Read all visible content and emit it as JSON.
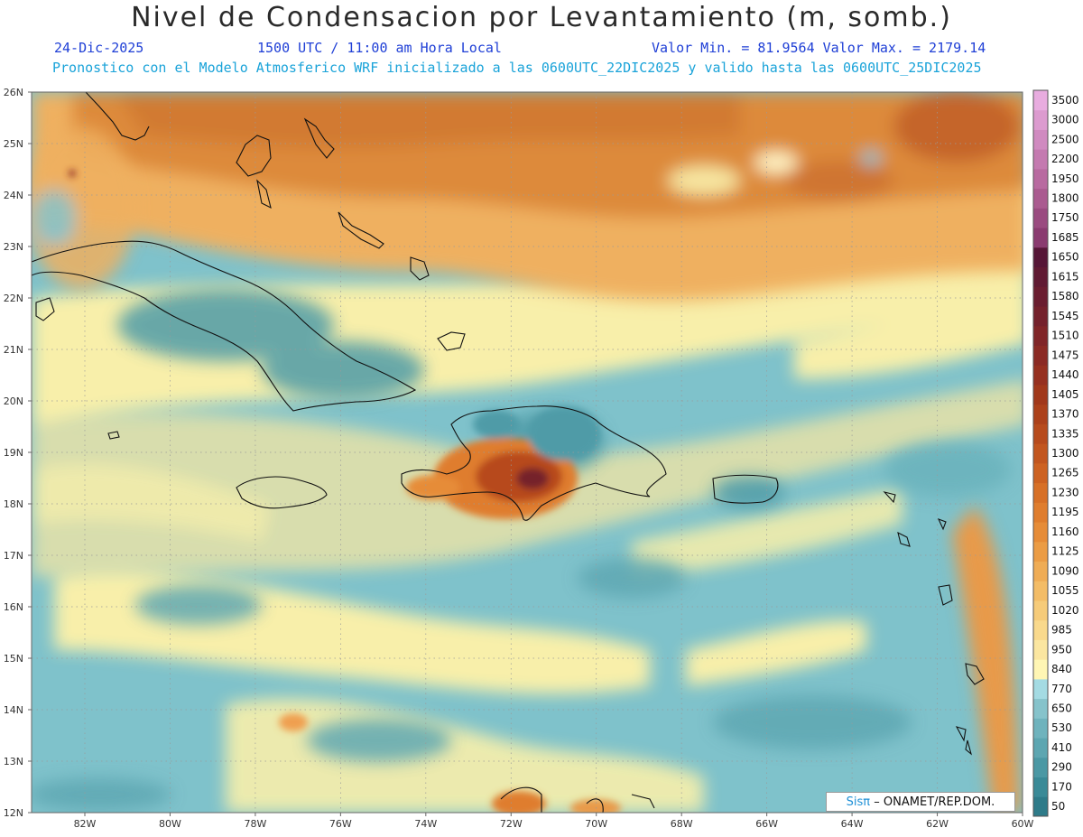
{
  "header": {
    "title": "Nivel de Condensacion por Levantamiento (m, somb.)",
    "date": "24-Dic-2025",
    "time": "1500 UTC / 11:00 am Hora Local",
    "minmax": "Valor Min. = 81.9564  Valor Max. = 2179.14",
    "forecast": "Pronostico con el Modelo Atmosferico WRF inicializado a las 0600UTC_22DIC2025 y valido hasta las  0600UTC_25DIC2025"
  },
  "axes": {
    "lat_labels": [
      "26N",
      "25N",
      "24N",
      "23N",
      "22N",
      "21N",
      "20N",
      "19N",
      "18N",
      "17N",
      "16N",
      "15N",
      "14N",
      "13N",
      "12N"
    ],
    "lon_labels": [
      "82W",
      "80W",
      "78W",
      "76W",
      "74W",
      "72W",
      "70W",
      "68W",
      "66W",
      "64W",
      "62W",
      "60W"
    ]
  },
  "colorbar": {
    "levels": [
      "50",
      "170",
      "290",
      "410",
      "530",
      "650",
      "770",
      "840",
      "950",
      "985",
      "1020",
      "1055",
      "1090",
      "1125",
      "1160",
      "1195",
      "1230",
      "1265",
      "1300",
      "1335",
      "1370",
      "1405",
      "1440",
      "1475",
      "1510",
      "1545",
      "1580",
      "1615",
      "1650",
      "1685",
      "1750",
      "1800",
      "1950",
      "2200",
      "2500",
      "3000",
      "3500"
    ],
    "colors": [
      "#2e7b89",
      "#3a8a97",
      "#4b98a4",
      "#5da6b1",
      "#6fb3bd",
      "#86c3cb",
      "#a4dbe3",
      "#fff6b4",
      "#fbe6a0",
      "#f9d98c",
      "#f6cb79",
      "#f3bc66",
      "#efac55",
      "#eb9c45",
      "#e68c38",
      "#df7d2e",
      "#d77027",
      "#cd6222",
      "#c2561f",
      "#b74b1d",
      "#ac411b",
      "#a1381b",
      "#963020",
      "#8b2a24",
      "#802528",
      "#74212c",
      "#6a1d30",
      "#601a33",
      "#561637",
      "#8a3b70",
      "#9a4b80",
      "#aa5b90",
      "#b86aa0",
      "#c47ab0",
      "#d08ac0",
      "#dc9bcf",
      "#e8acdf"
    ]
  },
  "credit": {
    "brand": "Sisπ",
    "text": "– ONAMET/REP.DOM."
  }
}
